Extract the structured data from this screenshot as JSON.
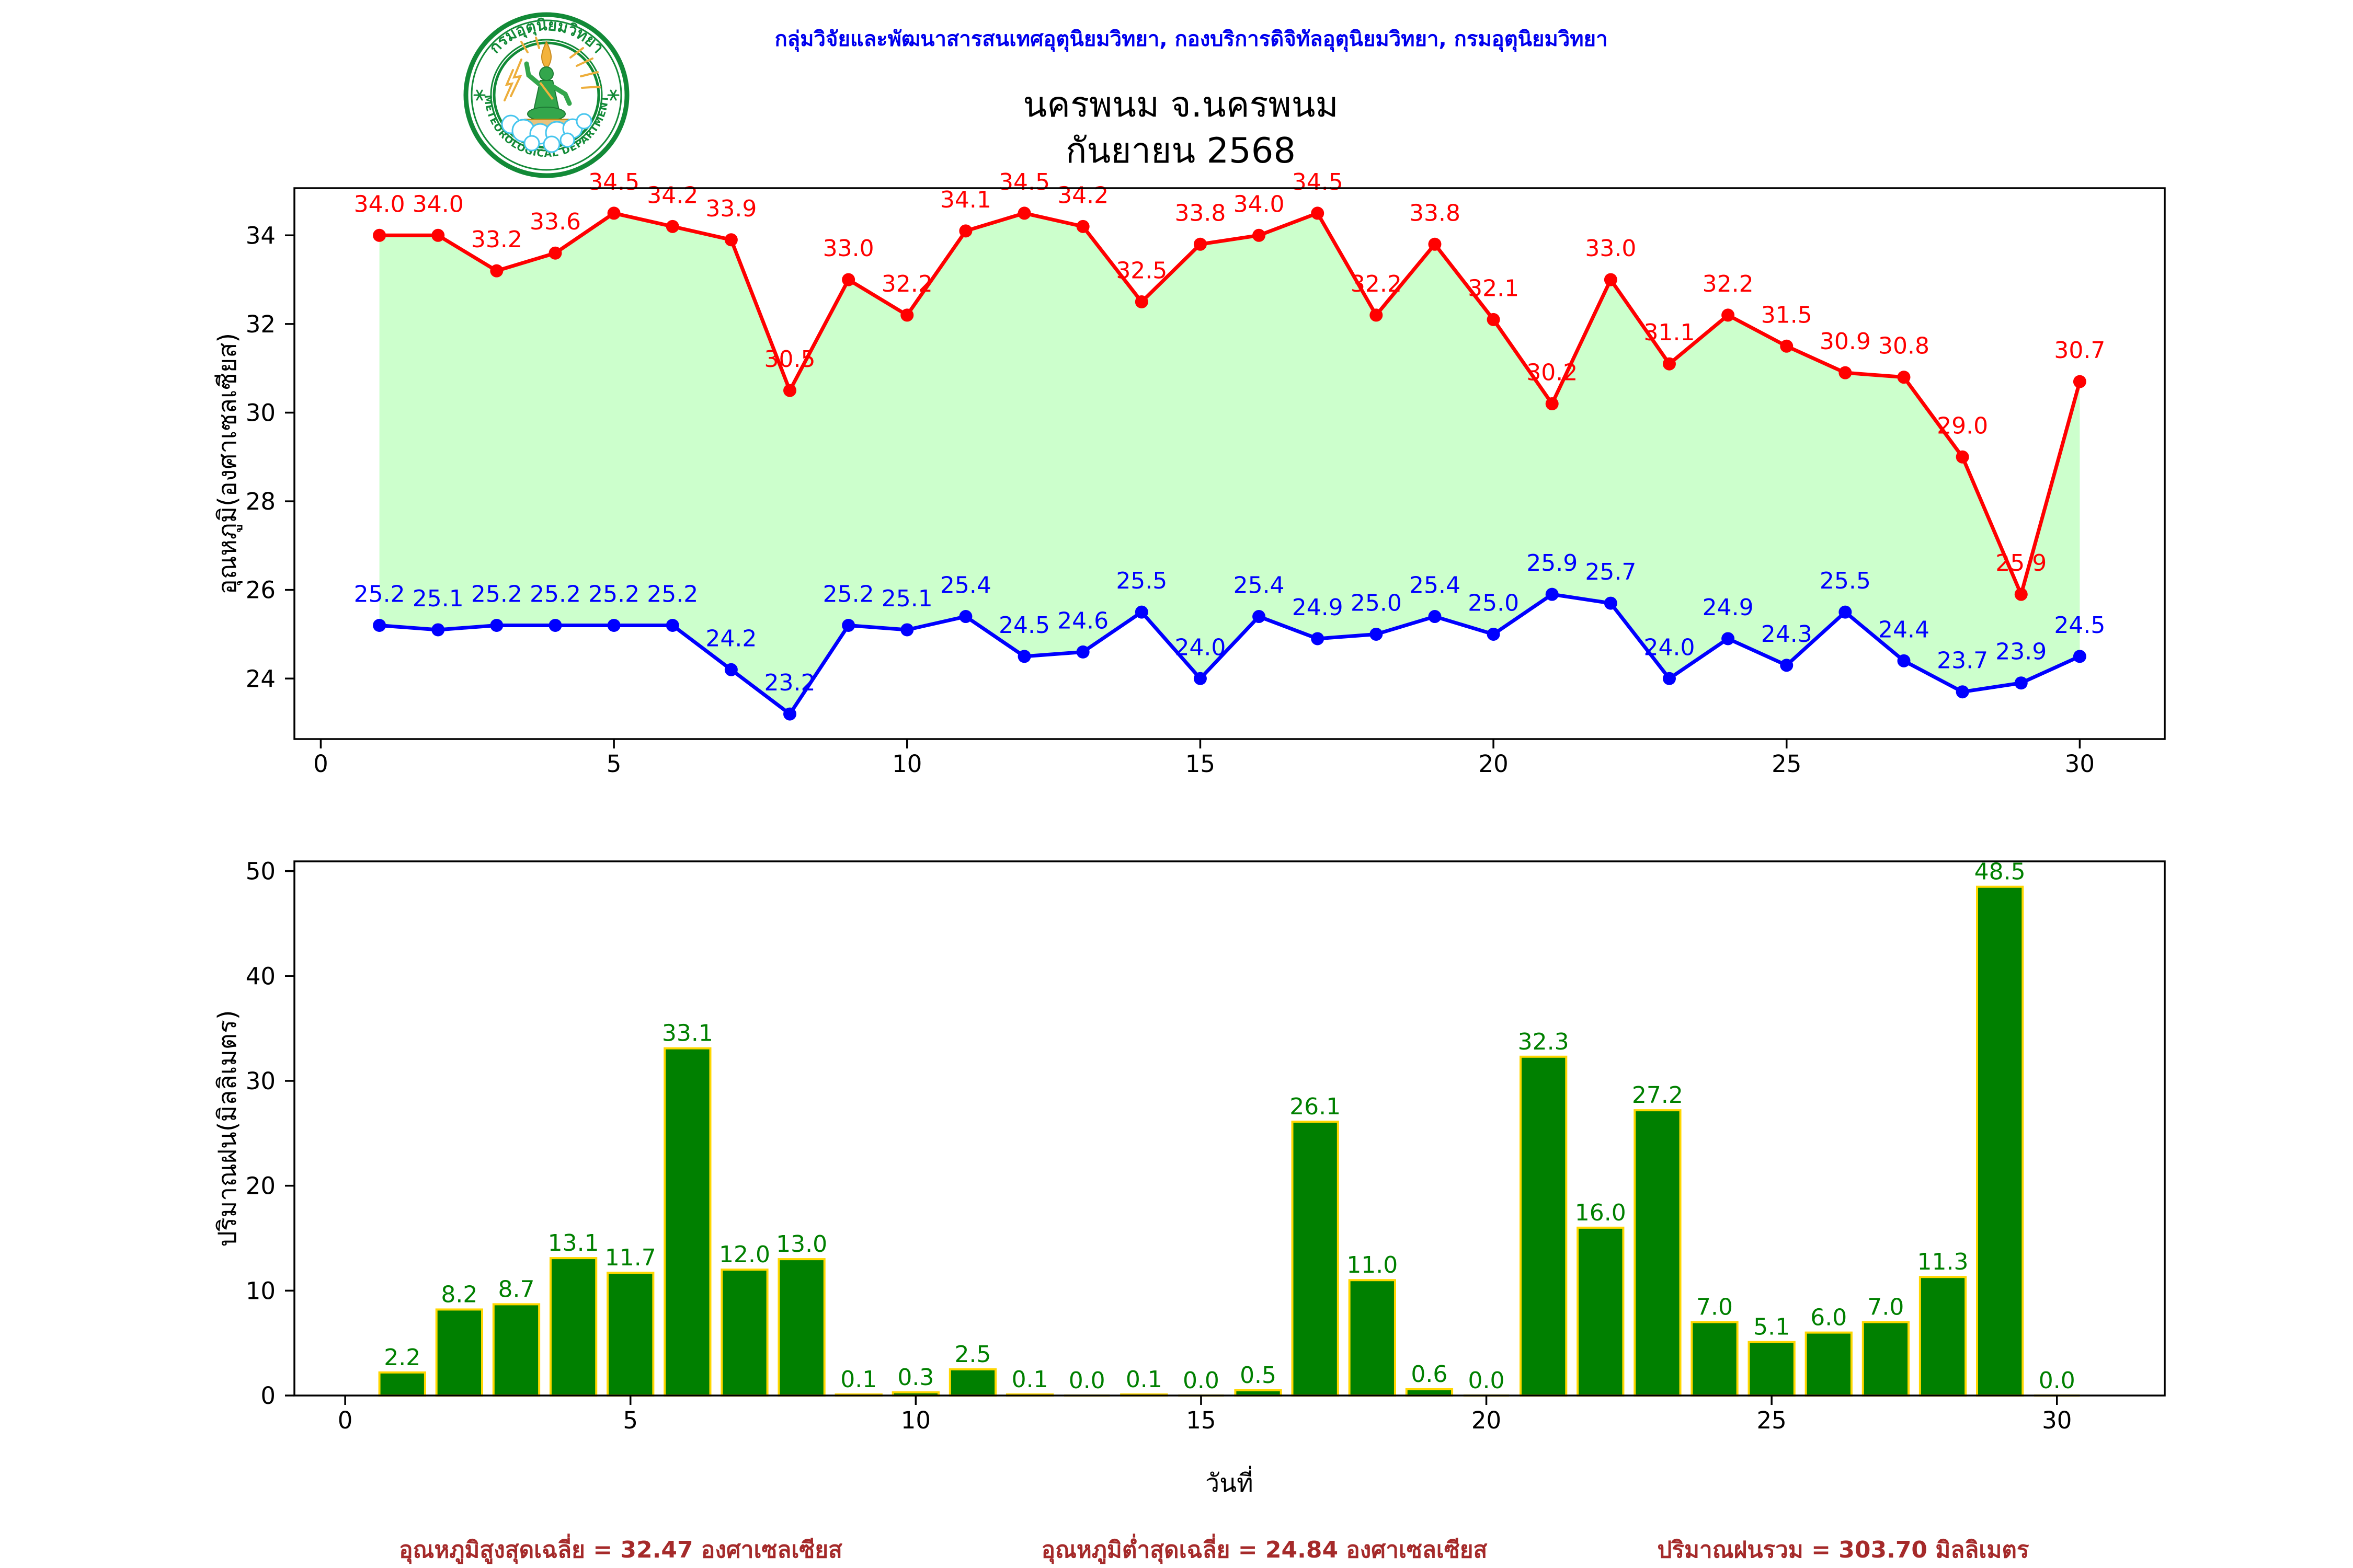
{
  "header": {
    "affiliation": "กลุ่มวิจัยและพัฒนาสารสนเทศอุตุนิยมวิทยา, กองบริการดิจิทัลอุตุนิยมวิทยา, กรมอุตุนิยมวิทยา",
    "affiliation_color": "#0000EE"
  },
  "logo": {
    "top_text": "กรมอุตุนิยมวิทยา",
    "bottom_text": "METEOROLOGICAL DEPARTMENT",
    "ring_color": "#128A37"
  },
  "chart_data": [
    {
      "type": "line",
      "title_line1": "นครพนม จ.นครพนม",
      "title_line2": "กันยายน 2568",
      "x": [
        1,
        2,
        3,
        4,
        5,
        6,
        7,
        8,
        9,
        10,
        11,
        12,
        13,
        14,
        15,
        16,
        17,
        18,
        19,
        20,
        21,
        22,
        23,
        24,
        25,
        26,
        27,
        28,
        29,
        30
      ],
      "series": [
        {
          "name": "max_temperature",
          "color": "#FF0000",
          "values": [
            34.0,
            34.0,
            33.2,
            33.6,
            34.5,
            34.2,
            33.9,
            30.5,
            33.0,
            32.2,
            34.1,
            34.5,
            34.2,
            32.5,
            33.8,
            34.0,
            34.5,
            32.2,
            33.8,
            32.1,
            30.2,
            33.0,
            31.1,
            32.2,
            31.5,
            30.9,
            30.8,
            29.0,
            25.9,
            30.7
          ]
        },
        {
          "name": "min_temperature",
          "color": "#0000FF",
          "values": [
            25.2,
            25.1,
            25.2,
            25.2,
            25.2,
            25.2,
            24.2,
            23.2,
            25.2,
            25.1,
            25.4,
            24.5,
            24.6,
            25.5,
            24.0,
            25.4,
            24.9,
            25.0,
            25.4,
            25.0,
            25.9,
            25.7,
            24.0,
            24.9,
            24.3,
            25.5,
            24.4,
            23.7,
            23.9,
            24.5
          ]
        }
      ],
      "fill_between_color": "#CCFFCC",
      "ylabel": "อุณหภูมิ(องศาเซลเซียส)",
      "yticks": [
        24,
        26,
        28,
        30,
        32,
        34
      ],
      "xticks": [
        0,
        5,
        10,
        15,
        20,
        25,
        30
      ],
      "xlim": [
        -0.45,
        31.45
      ],
      "ylim": [
        22.635,
        35.065
      ],
      "grid": false,
      "legend": "none"
    },
    {
      "type": "bar",
      "x": [
        1,
        2,
        3,
        4,
        5,
        6,
        7,
        8,
        9,
        10,
        11,
        12,
        13,
        14,
        15,
        16,
        17,
        18,
        19,
        20,
        21,
        22,
        23,
        24,
        25,
        26,
        27,
        28,
        29,
        30
      ],
      "values": [
        2.2,
        8.2,
        8.7,
        13.1,
        11.7,
        33.1,
        12.0,
        13.0,
        0.1,
        0.3,
        2.5,
        0.1,
        0.0,
        0.1,
        0.0,
        0.5,
        26.1,
        11.0,
        0.6,
        0.0,
        32.3,
        16.0,
        27.2,
        7.0,
        5.1,
        6.0,
        7.0,
        11.3,
        48.5,
        0.0
      ],
      "bar_color": "#008000",
      "bar_edge_color": "#FFD700",
      "label_color": "#008000",
      "ylabel": "ปริมาณฝน(มิลลิเมตร)",
      "xlabel": "วันที่",
      "yticks": [
        0,
        10,
        20,
        30,
        40,
        50
      ],
      "xticks": [
        0,
        5,
        10,
        15,
        20,
        25,
        30
      ],
      "xlim": [
        -0.89,
        31.89
      ],
      "ylim": [
        0,
        50.925
      ],
      "bar_width": 0.8,
      "grid": false
    }
  ],
  "footer": {
    "color": "#A52A2A",
    "max_avg": "อุณหภูมิสูงสุดเฉลี่ย = 32.47 องศาเซลเซียส",
    "min_avg": "อุณหภูมิต่ำสุดเฉลี่ย = 24.84 องศาเซลเซียส",
    "rain_total": "ปริมาณฝนรวม = 303.70 มิลลิเมตร"
  }
}
